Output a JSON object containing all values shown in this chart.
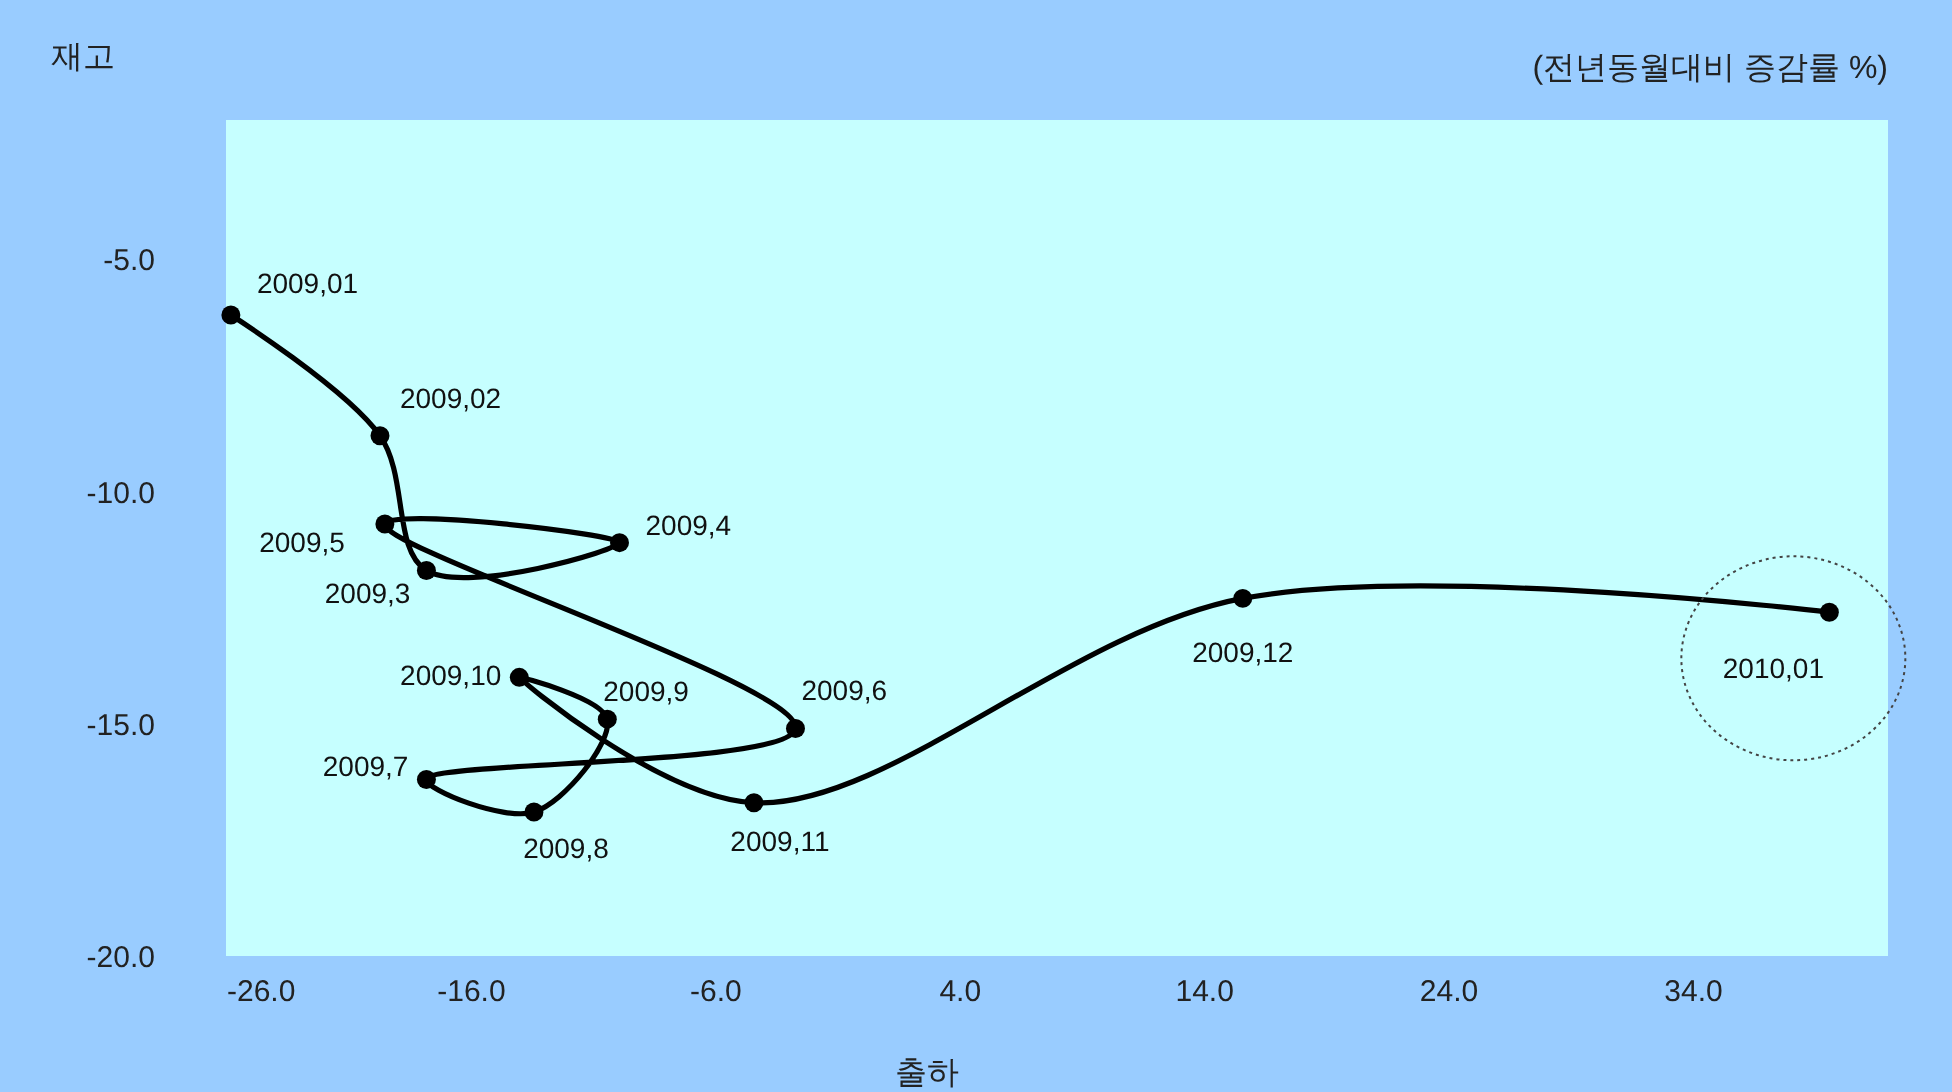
{
  "chart_data": {
    "type": "line",
    "ylabel": "재고",
    "xlabel": "출하",
    "x": [
      -25.8,
      -19.7,
      -17.8,
      -9.9,
      -19.5,
      -2.7,
      -17.8,
      -13.4,
      -10.4,
      -14.0,
      -4.4,
      15.6,
      39.6
    ],
    "series": [
      {
        "color": "#000000",
        "values": [
          -6.2,
          -8.8,
          -11.7,
          -11.1,
          -10.7,
          -15.1,
          -16.2,
          -16.9,
          -14.9,
          -14.0,
          -16.7,
          -12.3,
          -12.6
        ]
      }
    ],
    "marker": "circle",
    "line_style": "solid",
    "grid": false,
    "xlim": [
      -26,
      42
    ],
    "xticks": [
      {
        "value": -26,
        "label": "-26.0"
      },
      {
        "value": -16,
        "label": "-16.0"
      },
      {
        "value": -6,
        "label": "-6.0"
      },
      {
        "value": 4,
        "label": "4.0"
      },
      {
        "value": 14,
        "label": "14.0"
      },
      {
        "value": 24,
        "label": "24.0"
      },
      {
        "value": 34,
        "label": "34.0"
      }
    ],
    "ylim": [
      -20,
      -2
    ],
    "yticks": [
      {
        "value": -20,
        "label": "-20.0"
      },
      {
        "value": -15,
        "label": "-15.0"
      },
      {
        "value": -10,
        "label": "-10.0"
      },
      {
        "value": -5,
        "label": "-5.0"
      }
    ],
    "annotations": [
      "(전년동월대비 증감률 %)",
      {
        "text": "2009,01",
        "x": -25.8,
        "y": -6.2
      },
      {
        "text": "2009,02",
        "x": -19.7,
        "y": -8.8
      },
      {
        "text": "2009,3",
        "x": -17.8,
        "y": -11.7
      },
      {
        "text": "2009,4",
        "x": -9.9,
        "y": -11.1
      },
      {
        "text": "2009,5",
        "x": -19.5,
        "y": -10.7
      },
      {
        "text": "2009,6",
        "x": -2.7,
        "y": -15.1
      },
      {
        "text": "2009,7",
        "x": -17.8,
        "y": -16.2
      },
      {
        "text": "2009,8",
        "x": -13.4,
        "y": -16.9
      },
      {
        "text": "2009,9",
        "x": -10.4,
        "y": -14.9
      },
      {
        "text": "2009,10",
        "x": -14.0,
        "y": -14.0
      },
      {
        "text": "2009,11",
        "x": -4.4,
        "y": -16.7
      },
      {
        "text": "2009,12",
        "x": 15.6,
        "y": -12.3
      },
      {
        "text": "2010,01",
        "x": 39.6,
        "y": -12.6
      }
    ]
  }
}
